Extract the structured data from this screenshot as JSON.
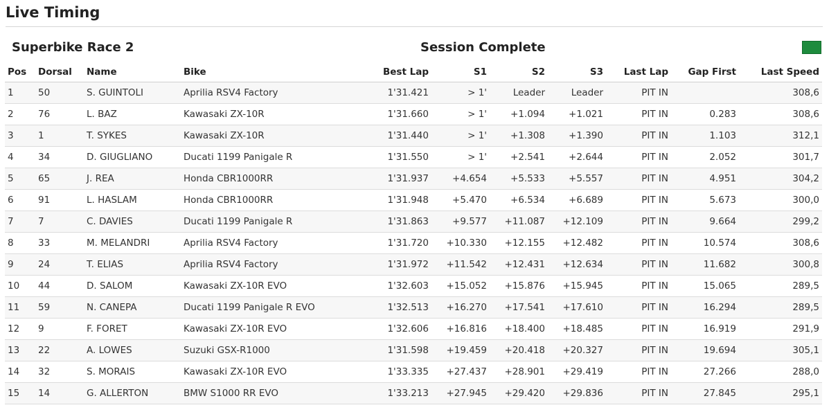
{
  "page": {
    "title": "Live Timing"
  },
  "session": {
    "race_name": "Superbike Race 2",
    "status": "Session Complete",
    "flag_color": "#1e8b3d"
  },
  "table": {
    "headers": {
      "pos": "Pos",
      "dorsal": "Dorsal",
      "name": "Name",
      "bike": "Bike",
      "best_lap": "Best Lap",
      "s1": "S1",
      "s2": "S2",
      "s3": "S3",
      "last_lap": "Last Lap",
      "gap_first": "Gap First",
      "last_speed": "Last Speed"
    },
    "rows": [
      {
        "pos": "1",
        "dorsal": "50",
        "name": "S. GUINTOLI",
        "bike": "Aprilia RSV4 Factory",
        "best_lap": "1'31.421",
        "s1": "> 1'",
        "s2": "Leader",
        "s3": "Leader",
        "last_lap": "PIT IN",
        "gap_first": "",
        "last_speed": "308,6"
      },
      {
        "pos": "2",
        "dorsal": "76",
        "name": "L. BAZ",
        "bike": "Kawasaki ZX-10R",
        "best_lap": "1'31.660",
        "s1": "> 1'",
        "s2": "+1.094",
        "s3": "+1.021",
        "last_lap": "PIT IN",
        "gap_first": "0.283",
        "last_speed": "308,6"
      },
      {
        "pos": "3",
        "dorsal": "1",
        "name": "T. SYKES",
        "bike": "Kawasaki ZX-10R",
        "best_lap": "1'31.440",
        "s1": "> 1'",
        "s2": "+1.308",
        "s3": "+1.390",
        "last_lap": "PIT IN",
        "gap_first": "1.103",
        "last_speed": "312,1"
      },
      {
        "pos": "4",
        "dorsal": "34",
        "name": "D. GIUGLIANO",
        "bike": "Ducati 1199 Panigale R",
        "best_lap": "1'31.550",
        "s1": "> 1'",
        "s2": "+2.541",
        "s3": "+2.644",
        "last_lap": "PIT IN",
        "gap_first": "2.052",
        "last_speed": "301,7"
      },
      {
        "pos": "5",
        "dorsal": "65",
        "name": "J. REA",
        "bike": "Honda CBR1000RR",
        "best_lap": "1'31.937",
        "s1": "+4.654",
        "s2": "+5.533",
        "s3": "+5.557",
        "last_lap": "PIT IN",
        "gap_first": "4.951",
        "last_speed": "304,2"
      },
      {
        "pos": "6",
        "dorsal": "91",
        "name": "L. HASLAM",
        "bike": "Honda CBR1000RR",
        "best_lap": "1'31.948",
        "s1": "+5.470",
        "s2": "+6.534",
        "s3": "+6.689",
        "last_lap": "PIT IN",
        "gap_first": "5.673",
        "last_speed": "300,0"
      },
      {
        "pos": "7",
        "dorsal": "7",
        "name": "C. DAVIES",
        "bike": "Ducati 1199 Panigale R",
        "best_lap": "1'31.863",
        "s1": "+9.577",
        "s2": "+11.087",
        "s3": "+12.109",
        "last_lap": "PIT IN",
        "gap_first": "9.664",
        "last_speed": "299,2"
      },
      {
        "pos": "8",
        "dorsal": "33",
        "name": "M. MELANDRI",
        "bike": "Aprilia RSV4 Factory",
        "best_lap": "1'31.720",
        "s1": "+10.330",
        "s2": "+12.155",
        "s3": "+12.482",
        "last_lap": "PIT IN",
        "gap_first": "10.574",
        "last_speed": "308,6"
      },
      {
        "pos": "9",
        "dorsal": "24",
        "name": "T. ELIAS",
        "bike": "Aprilia RSV4 Factory",
        "best_lap": "1'31.972",
        "s1": "+11.542",
        "s2": "+12.431",
        "s3": "+12.634",
        "last_lap": "PIT IN",
        "gap_first": "11.682",
        "last_speed": "300,8"
      },
      {
        "pos": "10",
        "dorsal": "44",
        "name": "D. SALOM",
        "bike": "Kawasaki ZX-10R EVO",
        "best_lap": "1'32.603",
        "s1": "+15.052",
        "s2": "+15.876",
        "s3": "+15.945",
        "last_lap": "PIT IN",
        "gap_first": "15.065",
        "last_speed": "289,5"
      },
      {
        "pos": "11",
        "dorsal": "59",
        "name": "N. CANEPA",
        "bike": "Ducati 1199 Panigale R EVO",
        "best_lap": "1'32.513",
        "s1": "+16.270",
        "s2": "+17.541",
        "s3": "+17.610",
        "last_lap": "PIT IN",
        "gap_first": "16.294",
        "last_speed": "289,5"
      },
      {
        "pos": "12",
        "dorsal": "9",
        "name": "F. FORET",
        "bike": "Kawasaki ZX-10R EVO",
        "best_lap": "1'32.606",
        "s1": "+16.816",
        "s2": "+18.400",
        "s3": "+18.485",
        "last_lap": "PIT IN",
        "gap_first": "16.919",
        "last_speed": "291,9"
      },
      {
        "pos": "13",
        "dorsal": "22",
        "name": "A. LOWES",
        "bike": "Suzuki GSX-R1000",
        "best_lap": "1'31.598",
        "s1": "+19.459",
        "s2": "+20.418",
        "s3": "+20.327",
        "last_lap": "PIT IN",
        "gap_first": "19.694",
        "last_speed": "305,1"
      },
      {
        "pos": "14",
        "dorsal": "32",
        "name": "S. MORAIS",
        "bike": "Kawasaki ZX-10R EVO",
        "best_lap": "1'33.335",
        "s1": "+27.437",
        "s2": "+28.901",
        "s3": "+29.419",
        "last_lap": "PIT IN",
        "gap_first": "27.266",
        "last_speed": "288,0"
      },
      {
        "pos": "15",
        "dorsal": "14",
        "name": "G. ALLERTON",
        "bike": "BMW S1000 RR EVO",
        "best_lap": "1'33.213",
        "s1": "+27.945",
        "s2": "+29.420",
        "s3": "+29.836",
        "last_lap": "PIT IN",
        "gap_first": "27.845",
        "last_speed": "295,1"
      }
    ]
  }
}
